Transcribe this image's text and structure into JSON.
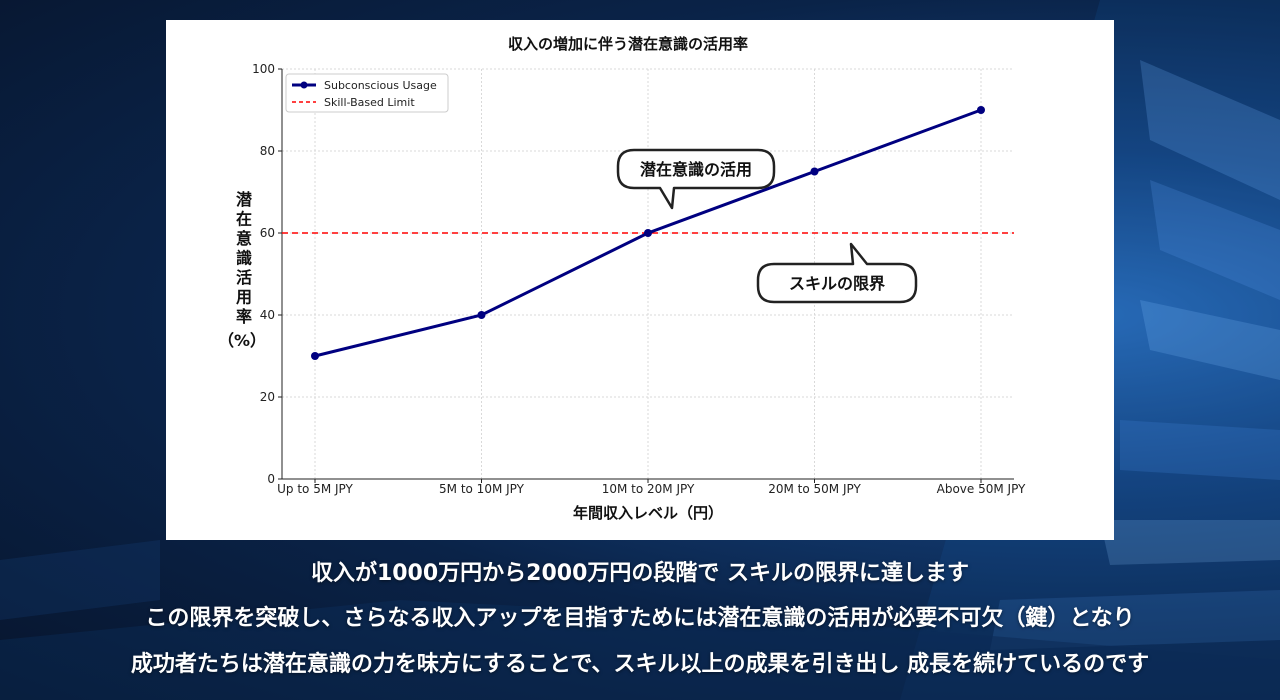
{
  "chart_data": {
    "type": "line",
    "title": "収入の増加に伴う潜在意識の活用率",
    "xlabel": "年間収入レベル（円）",
    "ylabel_chars": [
      "潜",
      "在",
      "意",
      "識",
      "活",
      "用",
      "率"
    ],
    "ylabel_unit": "（%）",
    "categories": [
      "Up to 5M JPY",
      "5M to 10M JPY",
      "10M to 20M JPY",
      "20M to 50M JPY",
      "Above 50M JPY"
    ],
    "ylim": [
      0,
      100
    ],
    "yticks": [
      0,
      20,
      40,
      60,
      80,
      100
    ],
    "grid": true,
    "legend_position": "top-left",
    "series": [
      {
        "name": "Subconscious Usage",
        "values": [
          30,
          40,
          60,
          75,
          90
        ],
        "color": "#000080"
      }
    ],
    "reference_lines": [
      {
        "name": "Skill-Based Limit",
        "value": 60,
        "color": "#ff0000",
        "style": "dashed"
      }
    ],
    "annotations": [
      {
        "text": "潜在意識の活用",
        "target_category": "10M to 20M JPY",
        "target_value": 60
      },
      {
        "text": "スキルの限界",
        "target_category": "20M to 50M JPY",
        "target_value": 60
      }
    ]
  },
  "captions": [
    "収入が1000万円から2000万円の段階で スキルの限界に達します",
    "この限界を突破し、さらなる収入アップを目指すためには潜在意識の活用が必要不可欠（鍵）となり",
    "成功者たちは潜在意識の力を味方にすることで、スキル以上の成果を引き出し 成長を続けているのです"
  ],
  "colors": {
    "background_dark": "#07152d",
    "background_accent": "#2c6fbd",
    "caption_text": "#ffffff"
  }
}
